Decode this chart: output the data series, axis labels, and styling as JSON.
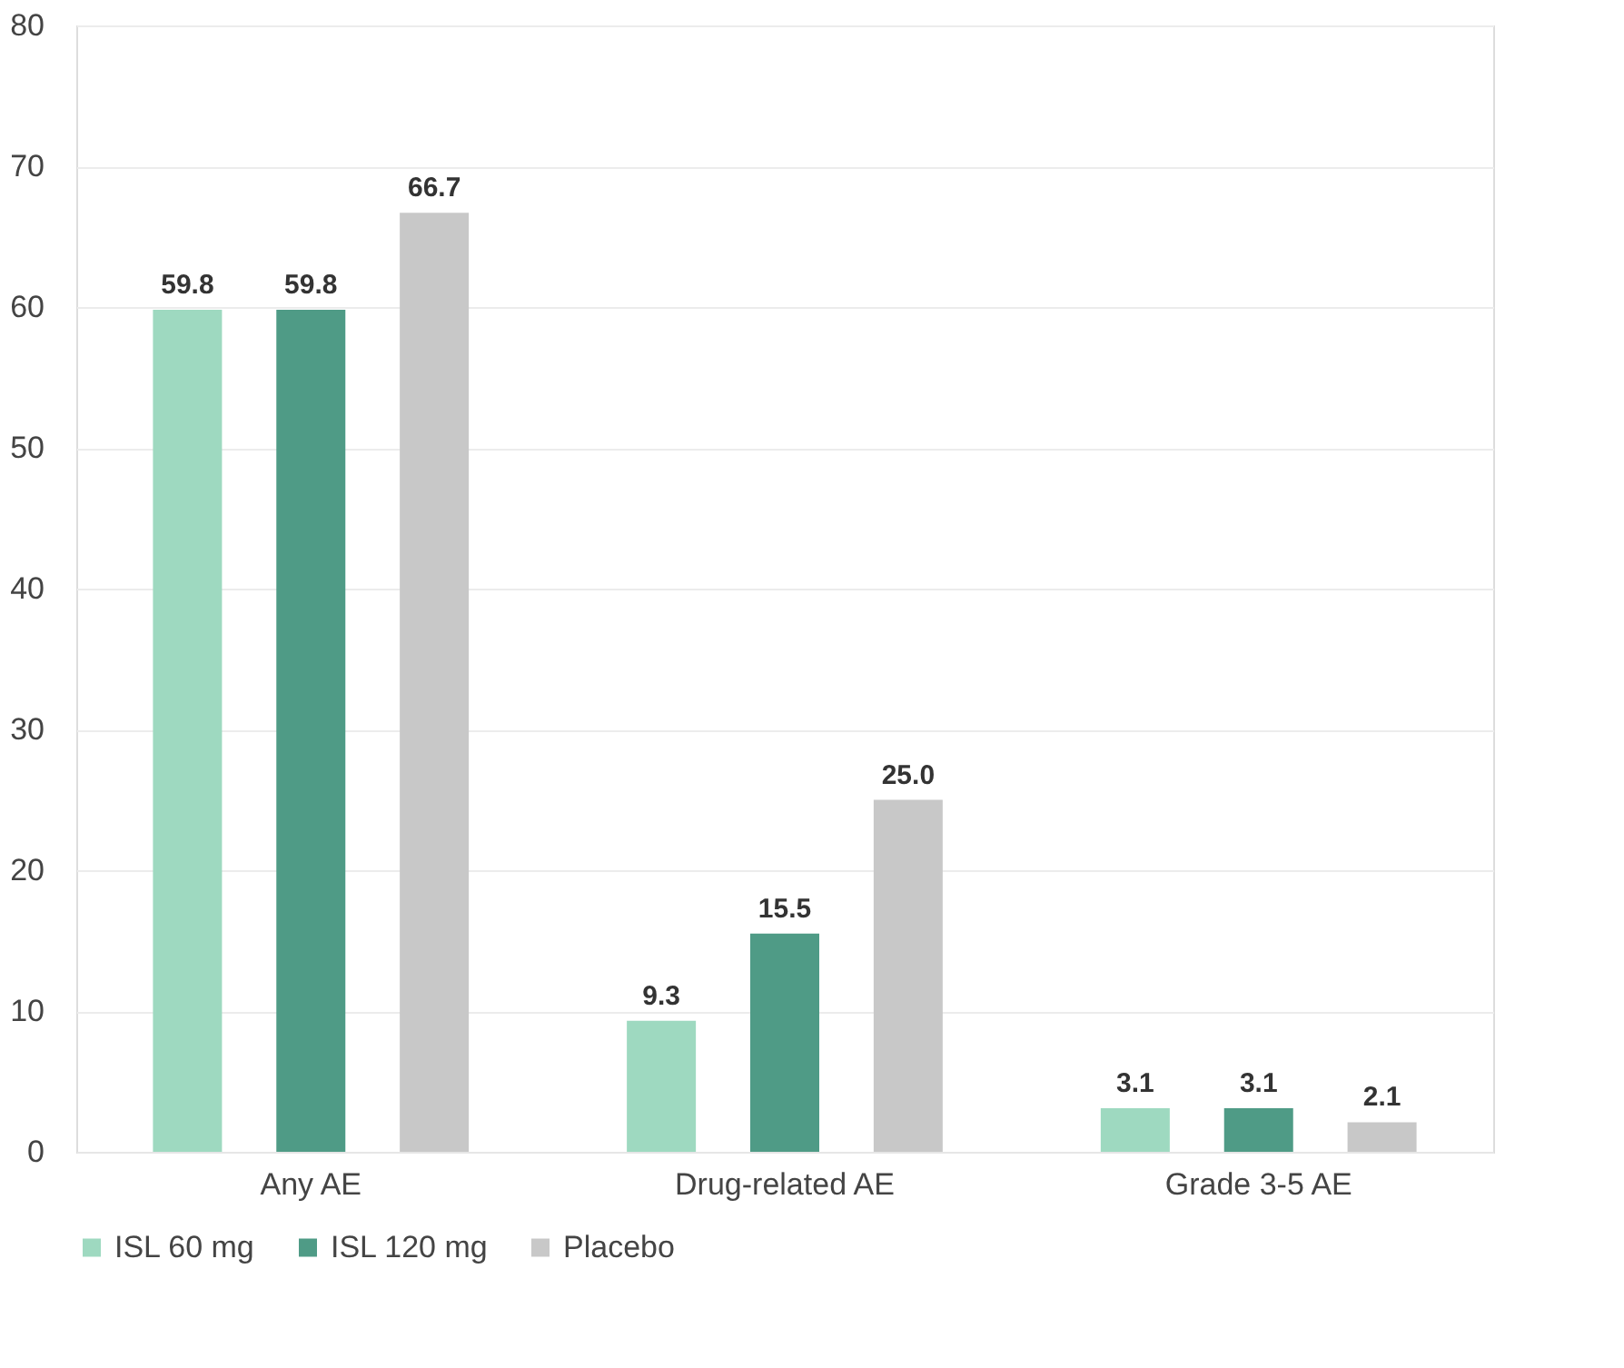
{
  "chart_data": {
    "type": "bar",
    "categories": [
      "Any AE",
      "Drug-related AE",
      "Grade 3-5 AE"
    ],
    "series": [
      {
        "name": "ISL 60 mg",
        "color": "#9ed9c0",
        "values": [
          59.8,
          9.3,
          3.1
        ],
        "value_labels": [
          "59.8",
          "9.3",
          "3.1"
        ]
      },
      {
        "name": "ISL 120 mg",
        "color": "#4f9b86",
        "values": [
          59.8,
          15.5,
          3.1
        ],
        "value_labels": [
          "59.8",
          "15.5",
          "3.1"
        ]
      },
      {
        "name": "Placebo",
        "color": "#c8c8c8",
        "values": [
          66.7,
          25.0,
          2.1
        ],
        "value_labels": [
          "66.7",
          "25.0",
          "2.1"
        ]
      }
    ],
    "ylim": [
      0,
      80
    ],
    "yticks": [
      0,
      10,
      20,
      30,
      40,
      50,
      60,
      70,
      80
    ],
    "grid": "y",
    "legend": "bottom"
  }
}
